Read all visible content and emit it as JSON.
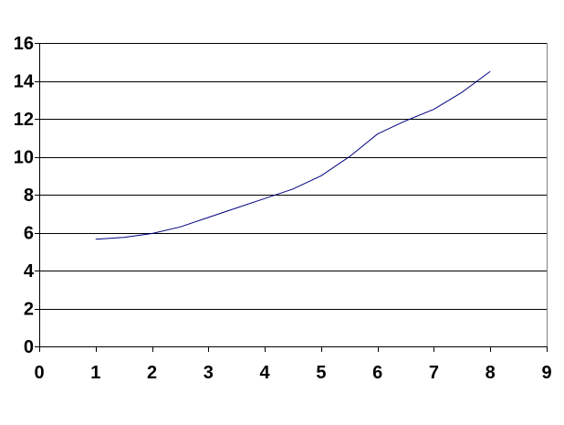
{
  "chart_data": {
    "type": "line",
    "title": "",
    "xlabel": "",
    "ylabel": "",
    "xlim": [
      0,
      9
    ],
    "ylim": [
      0,
      16
    ],
    "x_ticks": [
      0,
      1,
      2,
      3,
      4,
      5,
      6,
      7,
      8,
      9
    ],
    "y_ticks": [
      0,
      2,
      4,
      6,
      8,
      10,
      12,
      14,
      16
    ],
    "grid": {
      "horizontal": true,
      "vertical": false
    },
    "legend": "none",
    "series": [
      {
        "color": "#000080",
        "x": [
          1,
          1.5,
          2,
          2.5,
          3,
          3.5,
          4,
          4.5,
          5,
          5.5,
          6,
          6.5,
          7,
          7.5,
          8
        ],
        "y": [
          5.65,
          5.75,
          5.95,
          6.3,
          6.8,
          7.3,
          7.8,
          8.3,
          9.0,
          10.0,
          11.2,
          11.9,
          12.5,
          13.4,
          14.5
        ]
      }
    ]
  }
}
